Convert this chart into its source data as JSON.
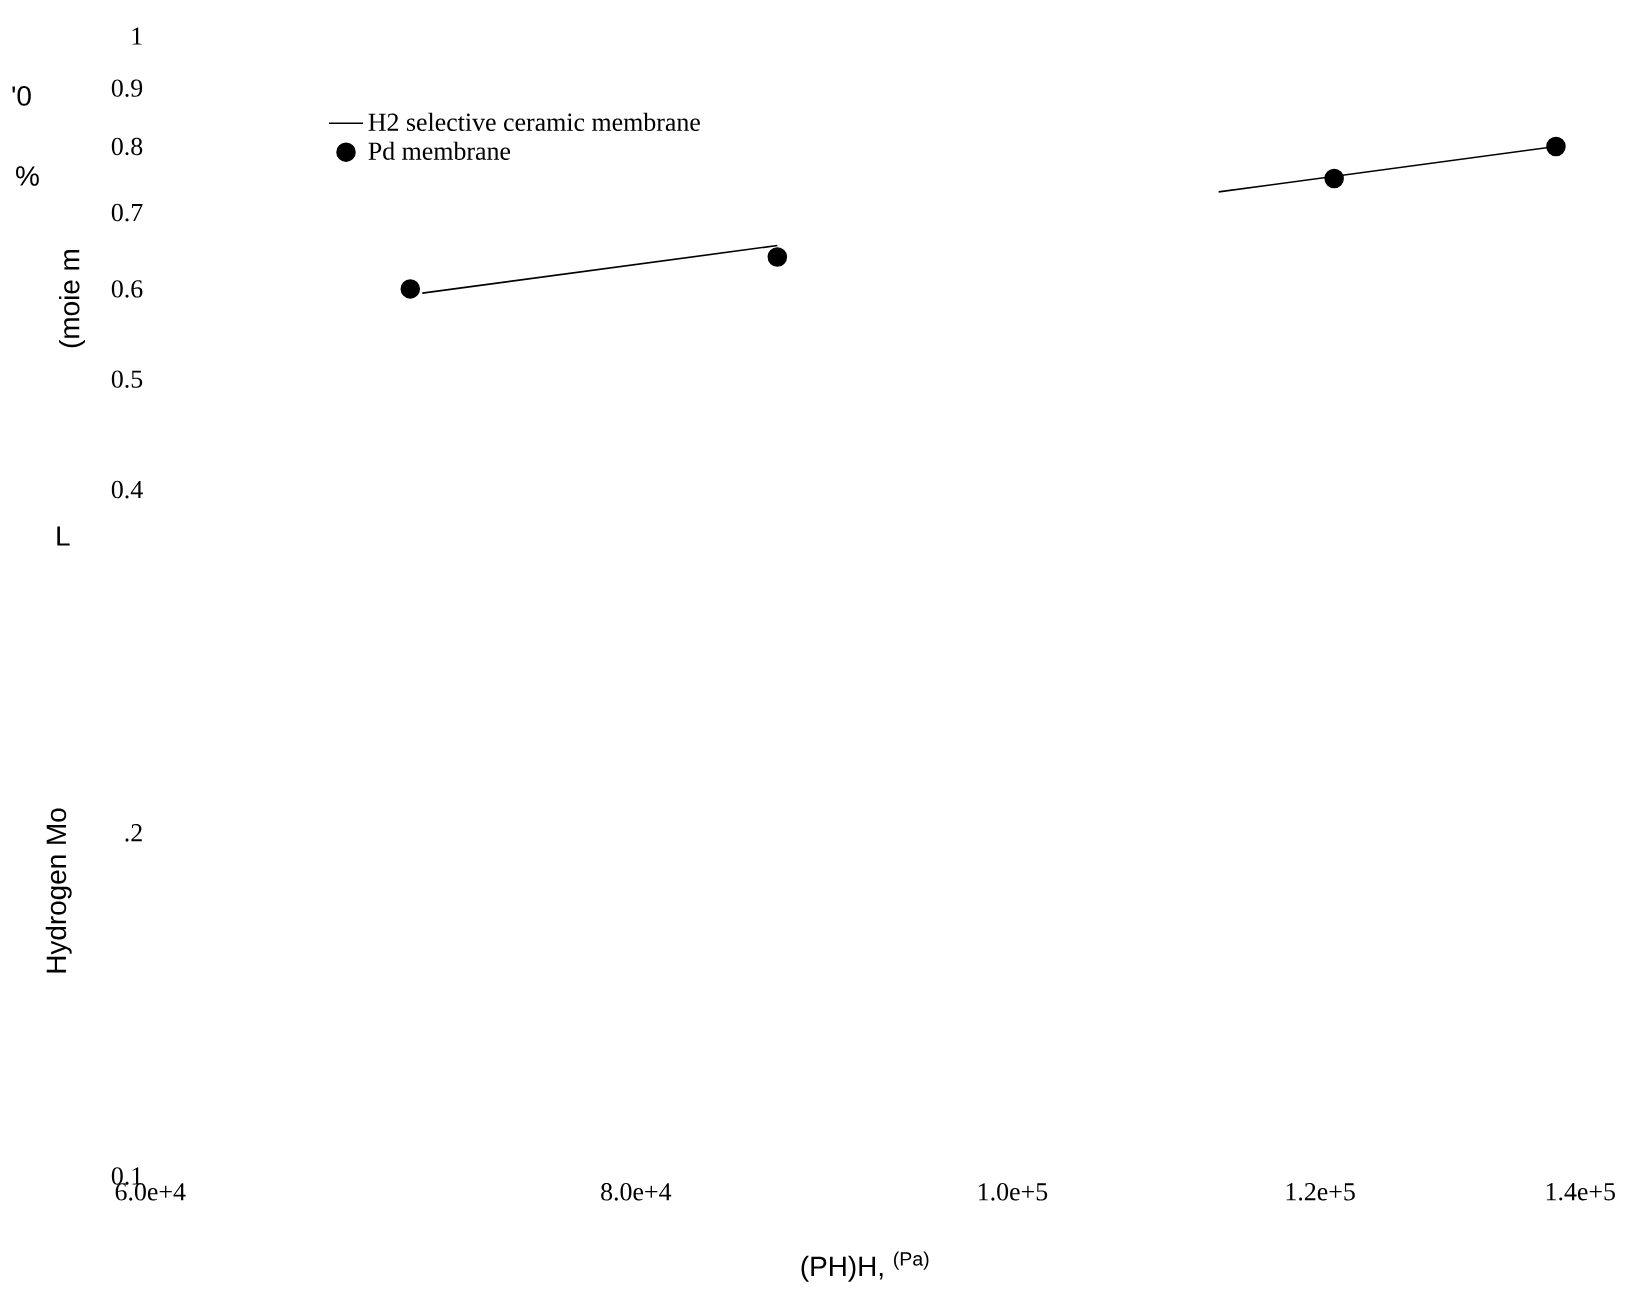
{
  "chart_data": {
    "type": "line",
    "xlabel": "(PH)H, $^{(Pa)}$",
    "ylabel": "Hydrogen Mo",
    "log": "xy",
    "xlim": [
      60000,
      140000
    ],
    "ylim": [
      0.1,
      1
    ],
    "xticks": [
      {
        "value": 60000,
        "label": "6.0e+4"
      },
      {
        "value": 80000,
        "label": "8.0e+4"
      },
      {
        "value": 100000,
        "label": "1.0e+5"
      },
      {
        "value": 120000,
        "label": "1.2e+5"
      },
      {
        "value": 140000,
        "label": "1.4e+5"
      }
    ],
    "yticks": [
      0.1,
      {
        "value": 0.2,
        "label": ".2"
      },
      0.4,
      0.5,
      0.6,
      0.7,
      0.8,
      0.9,
      1
    ],
    "legend": "top left",
    "grid": false,
    "series": [
      {
        "name": "H2 selective ceramic membrane",
        "color": "#000000",
        "marker": "none",
        "x": [
          70500,
          87000,
          100000,
          113000,
          138000
        ],
        "values": [
          0.595,
          0.655,
          null,
          0.73,
          0.8
        ]
      },
      {
        "name": "Pd membrane",
        "type": "scatter",
        "color": "#000000",
        "marker": "circle",
        "x": [
          70000,
          87000,
          121000,
          138000
        ],
        "values": [
          0.6,
          0.64,
          0.75,
          0.8
        ]
      }
    ],
    "annotations": [
      "L",
      "(moie m",
      "%",
      "'0"
    ]
  }
}
